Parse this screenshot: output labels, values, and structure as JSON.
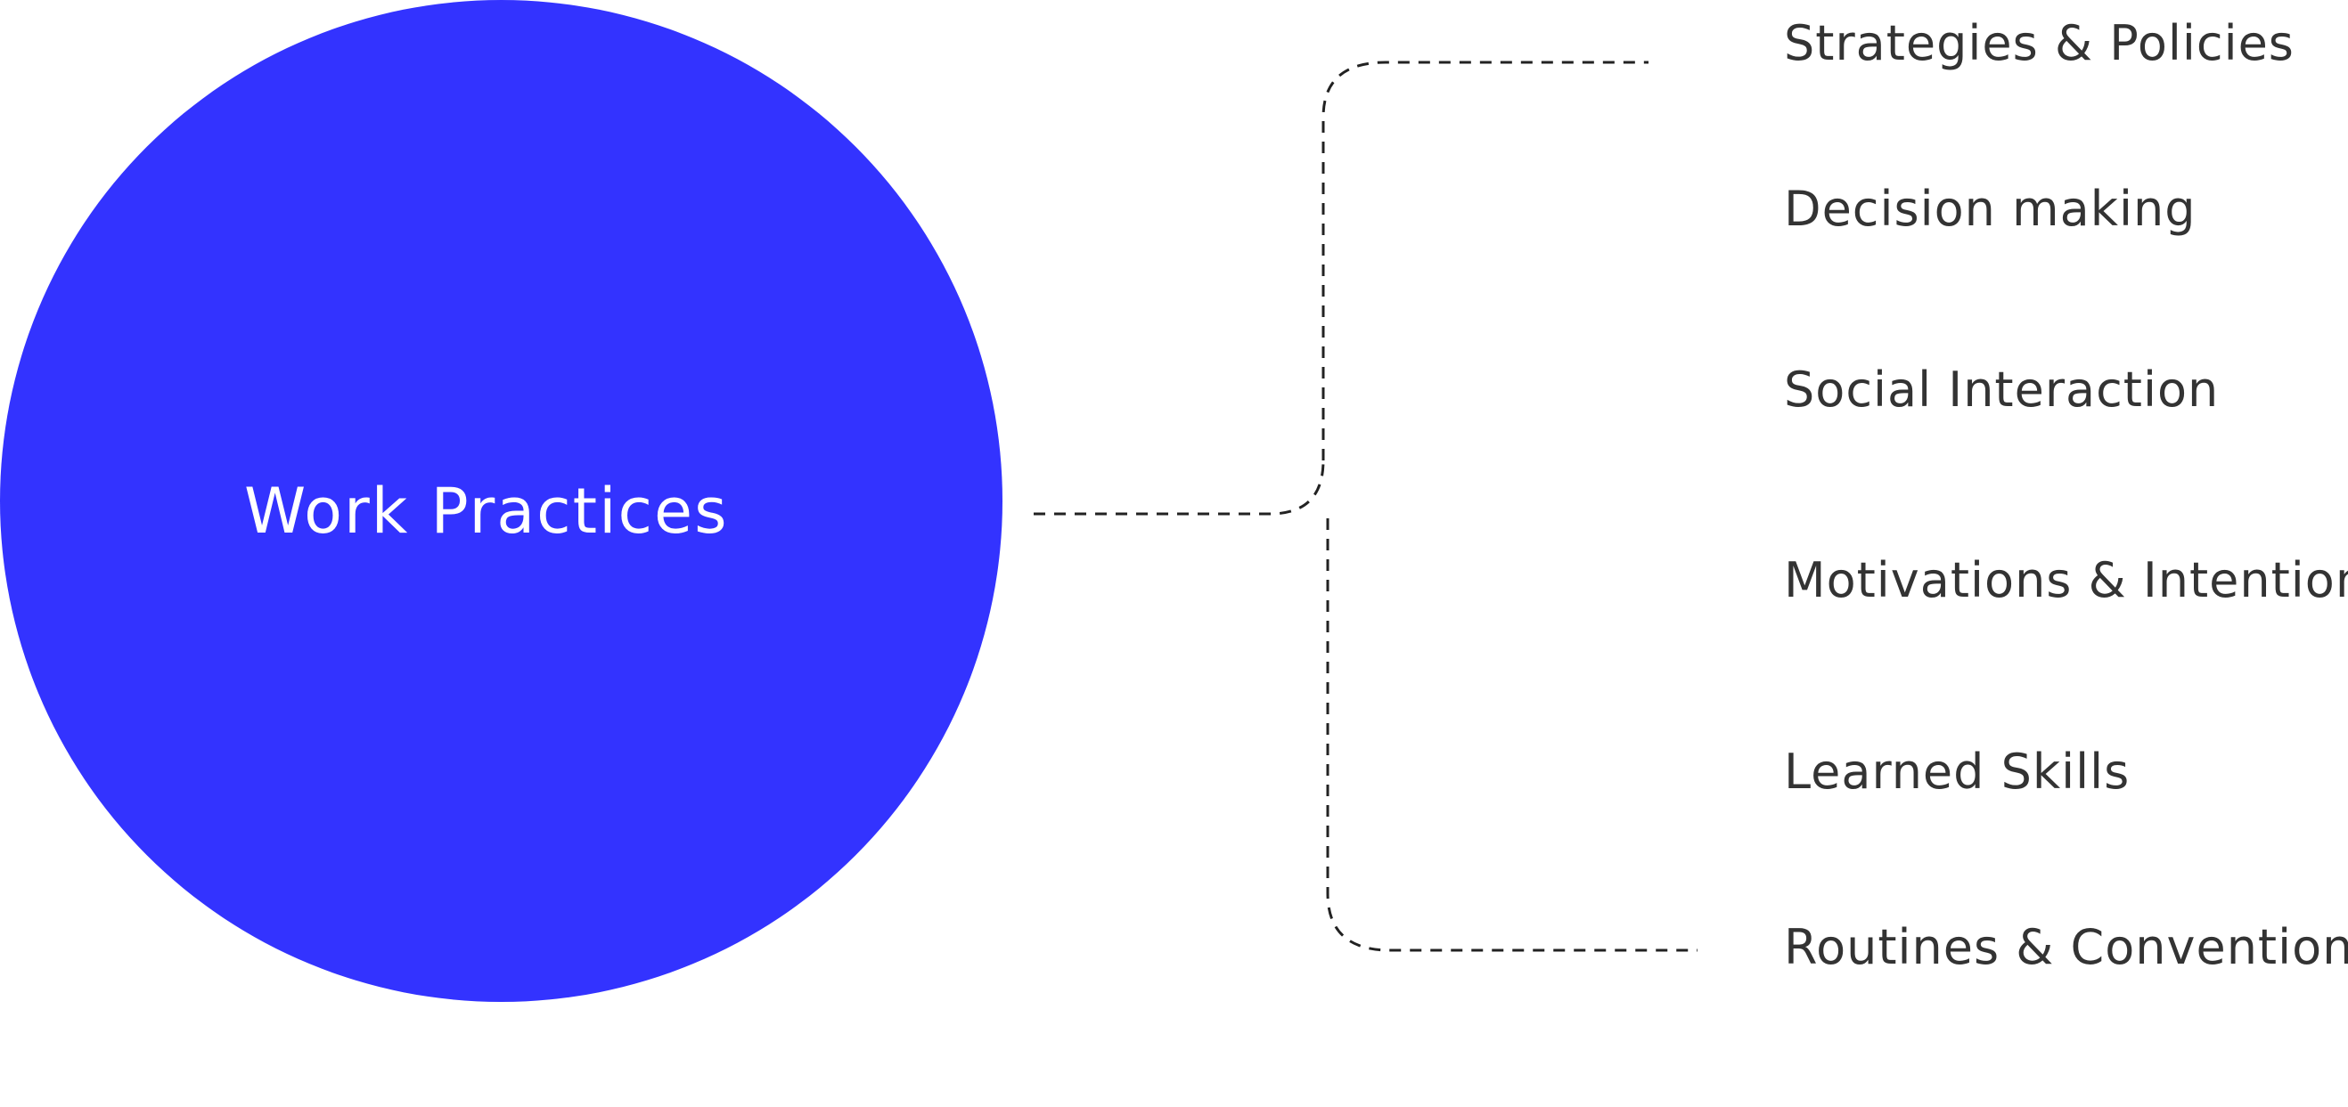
{
  "diagram": {
    "center_label": "Work Practices",
    "circle_color": "#3333ff",
    "items": [
      "Strategies &  Policies",
      "Decision making",
      "Social Interaction",
      "Motivations & Intentions",
      "Learned Skills",
      "Routines & Conventions"
    ]
  }
}
